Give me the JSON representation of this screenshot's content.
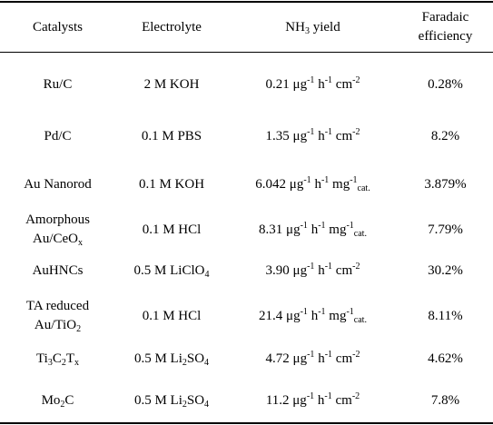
{
  "table": {
    "headers": {
      "catalysts": "Catalysts",
      "electrolyte": "Electrolyte",
      "yield_prefix": "NH",
      "yield_sub": "3",
      "yield_suffix": " yield",
      "fe_line1": "Faradaic",
      "fe_line2": "efficiency"
    },
    "rows": [
      {
        "catalyst": [
          {
            "t": "Ru/C"
          }
        ],
        "electrolyte": [
          {
            "t": "2 M KOH"
          }
        ],
        "yield": [
          {
            "t": "0.21 μg"
          },
          {
            "t": "-1",
            "sup": true
          },
          {
            "t": " h"
          },
          {
            "t": "-1",
            "sup": true
          },
          {
            "t": " cm"
          },
          {
            "t": "-2",
            "sup": true
          }
        ],
        "fe": "0.28%"
      },
      {
        "catalyst": [
          {
            "t": "Pd/C"
          }
        ],
        "electrolyte": [
          {
            "t": "0.1 M PBS"
          }
        ],
        "yield": [
          {
            "t": "1.35 μg"
          },
          {
            "t": "-1",
            "sup": true
          },
          {
            "t": " h"
          },
          {
            "t": "-1",
            "sup": true
          },
          {
            "t": " cm"
          },
          {
            "t": "-2",
            "sup": true
          }
        ],
        "fe": "8.2%"
      },
      {
        "catalyst": [
          {
            "t": "Au Nanorod"
          }
        ],
        "electrolyte": [
          {
            "t": "0.1 M KOH"
          }
        ],
        "yield": [
          {
            "t": "6.042 μg"
          },
          {
            "t": "-1",
            "sup": true
          },
          {
            "t": " h"
          },
          {
            "t": "-1",
            "sup": true
          },
          {
            "t": " mg"
          },
          {
            "t": "-1",
            "sup": true
          },
          {
            "t": "cat.",
            "sub": true
          }
        ],
        "fe": "3.879%"
      },
      {
        "catalyst_lines": [
          [
            {
              "t": "Amorphous"
            }
          ],
          [
            {
              "t": "Au/CeO"
            },
            {
              "t": "x",
              "sub": true
            }
          ]
        ],
        "electrolyte": [
          {
            "t": "0.1 M HCl"
          }
        ],
        "yield": [
          {
            "t": "8.31 μg"
          },
          {
            "t": "-1",
            "sup": true
          },
          {
            "t": " h"
          },
          {
            "t": "-1",
            "sup": true
          },
          {
            "t": " mg"
          },
          {
            "t": "-1",
            "sup": true
          },
          {
            "t": "cat.",
            "sub": true
          }
        ],
        "fe": "7.79%"
      },
      {
        "catalyst": [
          {
            "t": "AuHNCs"
          }
        ],
        "electrolyte": [
          {
            "t": "0.5 M LiClO"
          },
          {
            "t": "4",
            "sub": true
          }
        ],
        "yield": [
          {
            "t": "3.90 μg"
          },
          {
            "t": "-1",
            "sup": true
          },
          {
            "t": " h"
          },
          {
            "t": "-1",
            "sup": true
          },
          {
            "t": " cm"
          },
          {
            "t": "-2",
            "sup": true
          }
        ],
        "fe": "30.2%"
      },
      {
        "catalyst_lines": [
          [
            {
              "t": "TA reduced"
            }
          ],
          [
            {
              "t": "Au/TiO"
            },
            {
              "t": "2",
              "sub": true
            }
          ]
        ],
        "electrolyte": [
          {
            "t": "0.1 M HCl"
          }
        ],
        "yield": [
          {
            "t": "21.4 μg"
          },
          {
            "t": "-1",
            "sup": true
          },
          {
            "t": " h"
          },
          {
            "t": "-1",
            "sup": true
          },
          {
            "t": " mg"
          },
          {
            "t": "-1",
            "sup": true
          },
          {
            "t": "cat.",
            "sub": true
          }
        ],
        "fe": "8.11%"
      },
      {
        "catalyst": [
          {
            "t": "Ti"
          },
          {
            "t": "3",
            "sub": true
          },
          {
            "t": "C"
          },
          {
            "t": "2",
            "sub": true
          },
          {
            "t": "T"
          },
          {
            "t": "x",
            "sub": true
          }
        ],
        "electrolyte": [
          {
            "t": "0.5 M Li"
          },
          {
            "t": "2",
            "sub": true
          },
          {
            "t": "SO"
          },
          {
            "t": "4",
            "sub": true
          }
        ],
        "yield": [
          {
            "t": "4.72 μg"
          },
          {
            "t": "-1",
            "sup": true
          },
          {
            "t": " h"
          },
          {
            "t": "-1",
            "sup": true
          },
          {
            "t": " cm"
          },
          {
            "t": "-2",
            "sup": true
          }
        ],
        "fe": "4.62%"
      },
      {
        "catalyst": [
          {
            "t": "Mo"
          },
          {
            "t": "2",
            "sub": true
          },
          {
            "t": "C"
          }
        ],
        "electrolyte": [
          {
            "t": "0.5 M Li"
          },
          {
            "t": "2",
            "sub": true
          },
          {
            "t": "SO"
          },
          {
            "t": "4",
            "sub": true
          }
        ],
        "yield": [
          {
            "t": "11.2 μg"
          },
          {
            "t": "-1",
            "sup": true
          },
          {
            "t": " h"
          },
          {
            "t": "-1",
            "sup": true
          },
          {
            "t": " cm"
          },
          {
            "t": "-2",
            "sup": true
          }
        ],
        "fe": "7.8%"
      }
    ]
  }
}
